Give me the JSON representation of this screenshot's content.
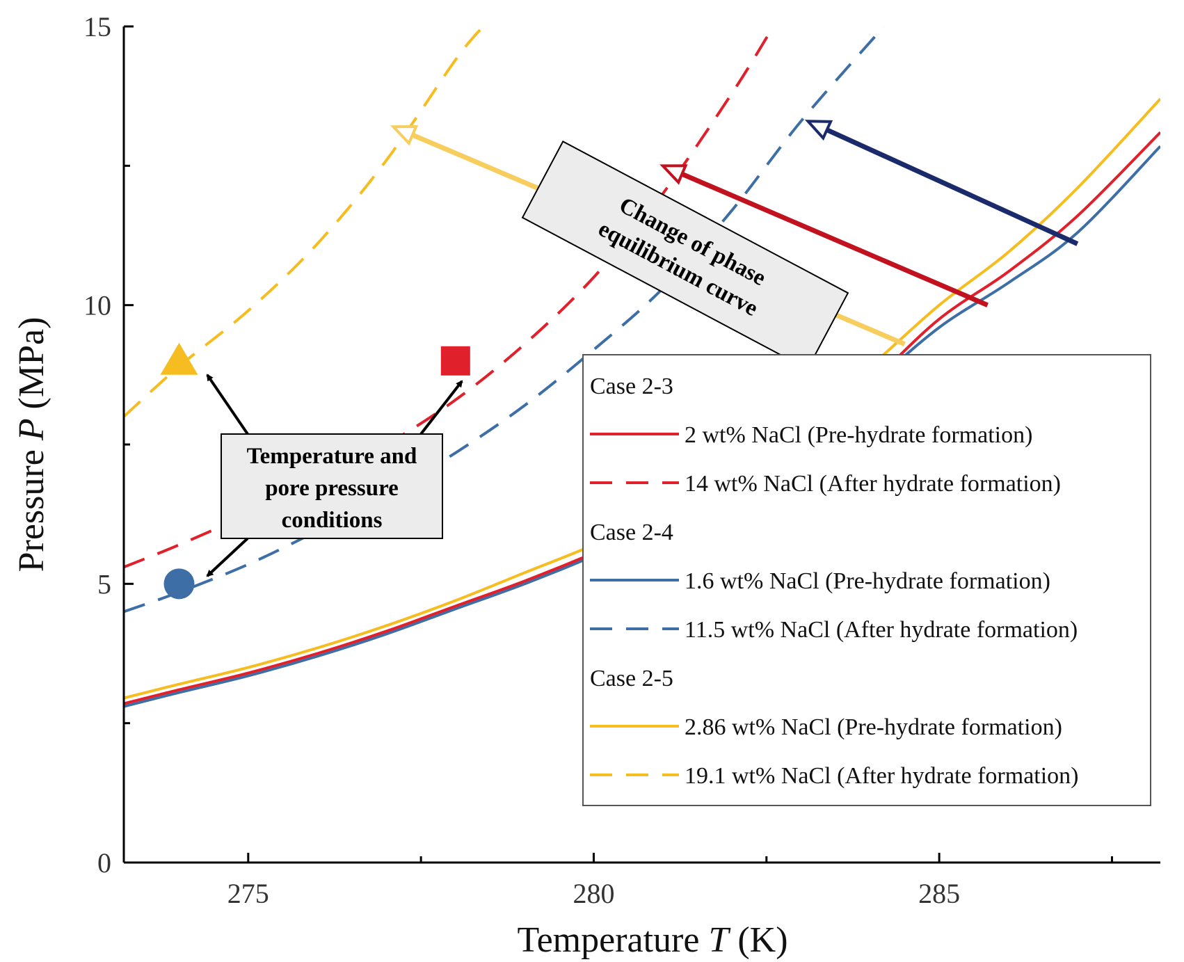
{
  "chart_data": {
    "type": "line",
    "xlabel": {
      "prefix": "Temperature ",
      "symbol": "T",
      "unit": " (K)"
    },
    "ylabel": {
      "prefix": "Pressure ",
      "symbol": "P",
      "unit": " (MPa)"
    },
    "xlim": [
      273.2,
      288.2
    ],
    "ylim": [
      0,
      15
    ],
    "xticks": [
      275,
      280,
      285
    ],
    "xticks_minor": [
      277.5,
      282.5,
      287.5
    ],
    "yticks": [
      0,
      5,
      10,
      15
    ],
    "yticks_minor": [
      2.5,
      7.5,
      12.5
    ],
    "colors": {
      "red": "#e0202b",
      "blue": "#3d6fa6",
      "yellow": "#f5bd1f",
      "navy": "#1a2a6b",
      "darkred": "#c0121f",
      "light_yellow": "#f7cd5e"
    },
    "series": [
      {
        "name": "2 wt% NaCl (Pre-hydrate formation)",
        "case": "Case 2-3",
        "color_key": "red",
        "dash": false,
        "x": [
          273.2,
          274,
          275,
          276,
          277,
          278,
          279,
          280,
          281,
          282,
          283,
          284,
          285,
          286,
          287,
          288.2
        ],
        "y": [
          2.85,
          3.1,
          3.4,
          3.75,
          4.15,
          4.6,
          5.05,
          5.55,
          6.1,
          6.8,
          7.6,
          8.6,
          9.75,
          10.6,
          11.6,
          13.1
        ]
      },
      {
        "name": "14 wt% NaCl (After hydrate formation)",
        "case": "Case 2-3",
        "color_key": "red",
        "dash": true,
        "x": [
          273.2,
          274,
          275,
          276,
          277,
          278,
          279,
          280,
          281,
          282,
          282.6
        ],
        "y": [
          5.3,
          5.7,
          6.25,
          6.85,
          7.5,
          8.3,
          9.3,
          10.5,
          12.0,
          13.8,
          15.0
        ]
      },
      {
        "name": "1.6 wt% NaCl (Pre-hydrate formation)",
        "case": "Case 2-4",
        "color_key": "blue",
        "dash": false,
        "x": [
          273.2,
          274,
          275,
          276,
          277,
          278,
          279,
          280,
          281,
          282,
          283,
          284,
          285,
          286,
          287,
          288.2
        ],
        "y": [
          2.8,
          3.05,
          3.35,
          3.7,
          4.1,
          4.55,
          5.0,
          5.5,
          6.05,
          6.75,
          7.55,
          8.55,
          9.6,
          10.4,
          11.3,
          12.85
        ]
      },
      {
        "name": "11.5 wt% NaCl (After hydrate formation)",
        "case": "Case 2-4",
        "color_key": "blue",
        "dash": true,
        "x": [
          273.2,
          274,
          275,
          276,
          277,
          278,
          279,
          280,
          281,
          282,
          283,
          284.2
        ],
        "y": [
          4.5,
          4.85,
          5.35,
          5.95,
          6.6,
          7.35,
          8.2,
          9.2,
          10.3,
          11.7,
          13.3,
          15.0
        ]
      },
      {
        "name": "2.86 wt% NaCl (Pre-hydrate formation)",
        "case": "Case 2-5",
        "color_key": "yellow",
        "dash": false,
        "x": [
          273.2,
          274,
          275,
          276,
          277,
          278,
          279,
          280,
          281,
          282,
          283,
          284,
          285,
          286,
          287,
          288.2
        ],
        "y": [
          2.95,
          3.2,
          3.5,
          3.85,
          4.25,
          4.7,
          5.2,
          5.7,
          6.3,
          7.0,
          7.9,
          8.9,
          10.0,
          10.95,
          12.1,
          13.7
        ]
      },
      {
        "name": "19.1 wt% NaCl (After hydrate formation)",
        "case": "Case 2-5",
        "color_key": "yellow",
        "dash": true,
        "x": [
          273.2,
          274,
          275,
          276,
          277,
          278,
          278.4
        ],
        "y": [
          8.0,
          8.9,
          9.9,
          11.1,
          12.6,
          14.4,
          15.0
        ]
      }
    ],
    "markers": [
      {
        "shape": "triangle",
        "x": 274.0,
        "y": 9.0,
        "color_key": "yellow"
      },
      {
        "shape": "square",
        "x": 278.0,
        "y": 9.0,
        "color_key": "red"
      },
      {
        "shape": "circle",
        "x": 274.0,
        "y": 5.0,
        "color_key": "blue"
      }
    ],
    "shift_arrows": [
      {
        "from": [
          284.5,
          9.3
        ],
        "to": [
          277.1,
          13.2
        ],
        "color_key": "light_yellow"
      },
      {
        "from": [
          285.7,
          10.0
        ],
        "to": [
          281.0,
          12.5
        ],
        "color_key": "darkred"
      },
      {
        "from": [
          287.0,
          11.1
        ],
        "to": [
          283.1,
          13.3
        ],
        "color_key": "navy"
      }
    ],
    "annotations": {
      "phase_change": {
        "lines": [
          "Change of phase",
          "equilibrium curve"
        ]
      },
      "conditions": {
        "lines": [
          "Temperature and",
          "pore pressure",
          "conditions"
        ]
      }
    },
    "legend": {
      "position": "lower-right",
      "groups": [
        {
          "title": "Case 2-3",
          "items": [
            0,
            1
          ]
        },
        {
          "title": "Case 2-4",
          "items": [
            2,
            3
          ]
        },
        {
          "title": "Case 2-5",
          "items": [
            4,
            5
          ]
        }
      ]
    }
  }
}
